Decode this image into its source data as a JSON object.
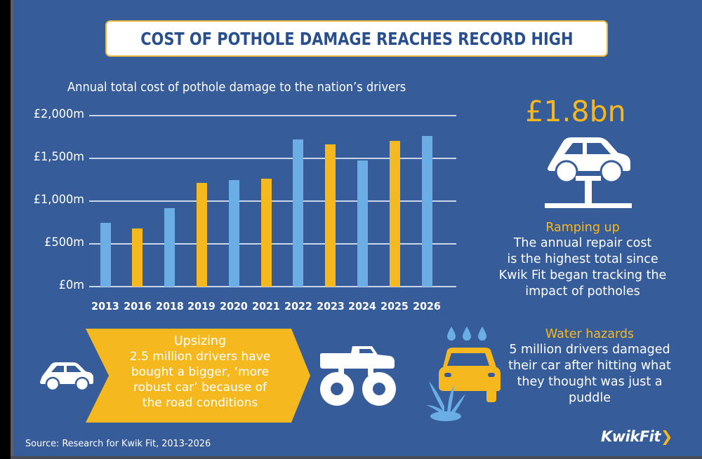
{
  "title": "COST OF POTHOLE DAMAGE REACHES RECORD HIGH",
  "colors": {
    "background": "#365c99",
    "bar_blue": "#6aaee5",
    "bar_yellow": "#f6b81f",
    "title_text": "#2a4f8f",
    "accent": "#f6b81f"
  },
  "chart_data": {
    "type": "bar",
    "title": "Annual total cost of pothole damage to the nation’s drivers",
    "xlabel": "",
    "ylabel": "",
    "categories": [
      "2013",
      "2016",
      "2018",
      "2019",
      "2020",
      "2021",
      "2022",
      "2023",
      "2024",
      "2025",
      "2026"
    ],
    "values": [
      750,
      680,
      915,
      1210,
      1245,
      1265,
      1720,
      1665,
      1475,
      1705,
      1760
    ],
    "bar_colors": [
      "blue",
      "yellow",
      "blue",
      "yellow",
      "blue",
      "yellow",
      "blue",
      "yellow",
      "blue",
      "yellow",
      "blue"
    ],
    "unit": "£m",
    "ylim": [
      0,
      2000
    ],
    "yticks": [
      0,
      500,
      1000,
      1500,
      2000
    ],
    "ytick_labels": [
      "£0m",
      "£500m",
      "£1,000m",
      "£1,500m",
      "£2,000m"
    ],
    "grid": true,
    "legend": null
  },
  "ramping": {
    "big_number": "£1.8bn",
    "icon": "car-lift-icon",
    "heading": "Ramping up",
    "lines": [
      "The annual repair cost",
      "is the highest total since",
      "Kwik Fit began tracking the",
      "impact of potholes"
    ]
  },
  "upsizing": {
    "icon_left": "small-car-icon",
    "icon_right": "monster-truck-icon",
    "heading": "Upsizing",
    "lines": [
      "2.5 million drivers have",
      "bought a bigger, ‘more",
      "robust car’ because of",
      "the road conditions"
    ]
  },
  "water": {
    "icon": "car-puddle-splash-icon",
    "heading": "Water hazards",
    "lines": [
      "5 million drivers damaged",
      "their car after hitting what",
      "they thought was just a",
      "puddle"
    ]
  },
  "source": "Source: Research for Kwik Fit, 2013-2026",
  "logo": {
    "text": "KwikFit",
    "chevron": "❯"
  }
}
